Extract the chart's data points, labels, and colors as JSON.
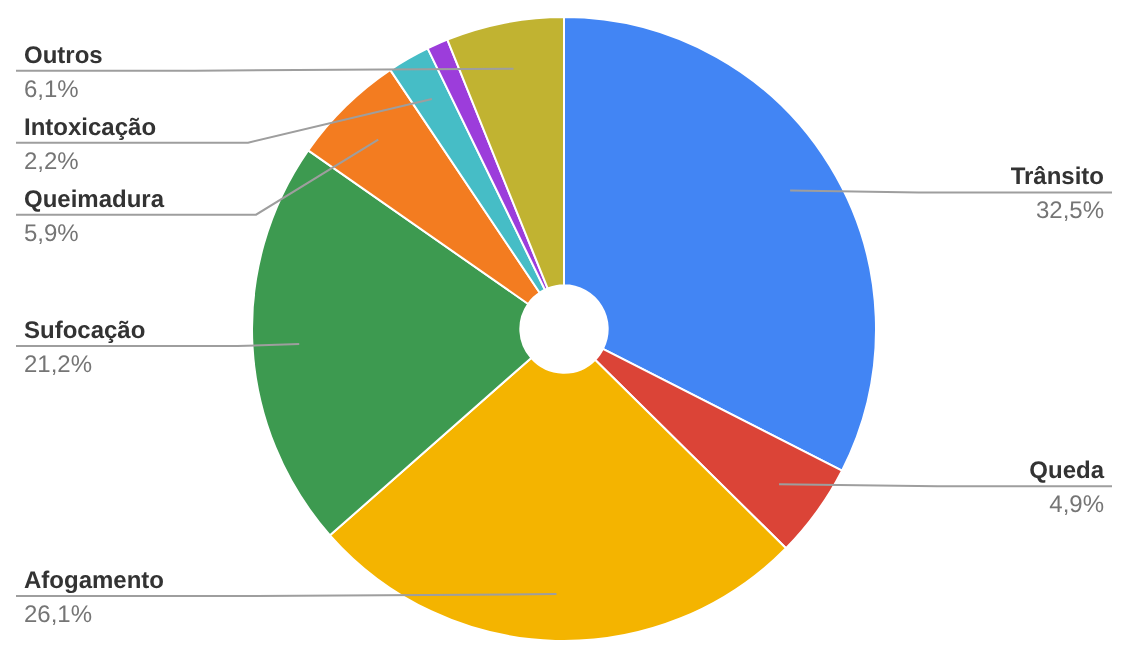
{
  "chart_data": {
    "type": "donut",
    "categories": [
      "Trânsito",
      "Queda",
      "Afogamento",
      "Sufocação",
      "Queimadura",
      "Intoxicação",
      null,
      "Outros"
    ],
    "values": [
      32.5,
      4.9,
      26.1,
      21.2,
      5.9,
      2.2,
      1.1,
      6.1
    ],
    "colors": [
      "#4285f4",
      "#db4437",
      "#f4b400",
      "#3d9a50",
      "#f37c20",
      "#46bdc6",
      "#9c3ddb",
      "#c1b331"
    ],
    "value_labels": [
      "32,5%",
      "4,9%",
      "26,1%",
      "21,2%",
      "5,9%",
      "2,2%",
      null,
      "6,1%"
    ]
  }
}
